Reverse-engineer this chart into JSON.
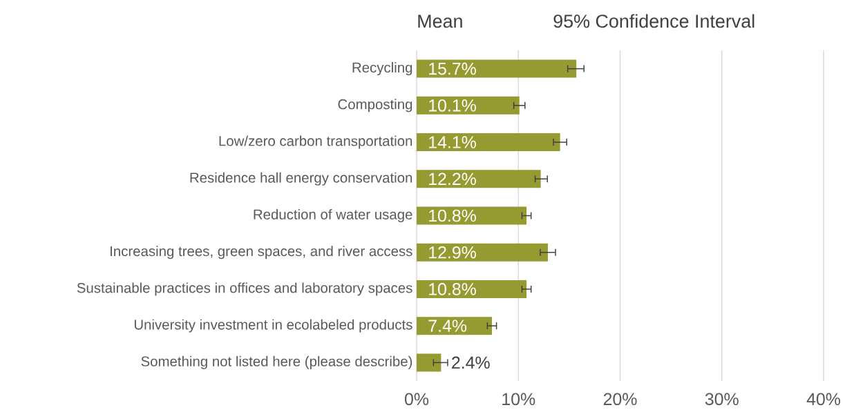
{
  "chart_data": {
    "type": "bar",
    "orientation": "horizontal",
    "annotations": [
      "Mean",
      "95% Confidence Interval"
    ],
    "categories": [
      "Recycling",
      "Composting",
      "Low/zero carbon transportation",
      "Residence hall energy conservation",
      "Reduction of water usage",
      "Increasing trees, green spaces, and river access",
      "Sustainable practices in offices and laboratory spaces",
      "University investment in ecolabeled products",
      "Something not listed here (please describe)"
    ],
    "values": [
      15.7,
      10.1,
      14.1,
      12.2,
      10.8,
      12.9,
      10.8,
      7.4,
      2.4
    ],
    "errors": [
      [
        14.8,
        16.5
      ],
      [
        9.5,
        10.7
      ],
      [
        13.4,
        14.8
      ],
      [
        11.6,
        12.9
      ],
      [
        10.3,
        11.3
      ],
      [
        12.1,
        13.7
      ],
      [
        10.3,
        11.3
      ],
      [
        6.9,
        7.9
      ],
      [
        1.6,
        3.1
      ]
    ],
    "value_labels": [
      "15.7%",
      "10.1%",
      "14.1%",
      "12.2%",
      "10.8%",
      "12.9%",
      "10.8%",
      "7.4%",
      "2.4%"
    ],
    "color": "#959a31",
    "xlim": [
      0,
      40
    ],
    "xticks": [
      {
        "value": 0,
        "label": "0%"
      },
      {
        "value": 10,
        "label": "10%"
      },
      {
        "value": 20,
        "label": "20%"
      },
      {
        "value": 30,
        "label": "30%"
      },
      {
        "value": 40,
        "label": "40%"
      }
    ],
    "grid": "x"
  }
}
